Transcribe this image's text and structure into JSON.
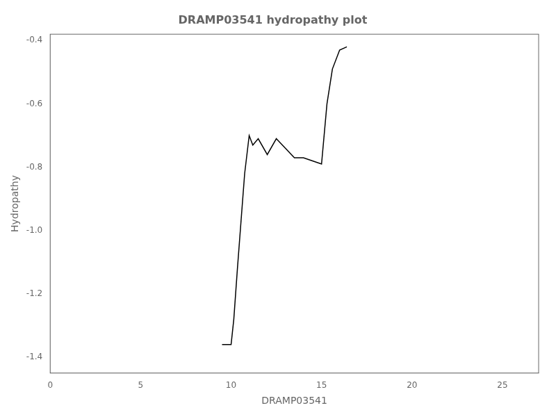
{
  "chart_data": {
    "type": "line",
    "title": "DRAMP03541 hydropathy plot",
    "xlabel": "DRAMP03541",
    "ylabel": "Hydropathy",
    "x": [
      9.5,
      10.0,
      10.15,
      10.35,
      10.55,
      10.75,
      11.0,
      11.2,
      11.5,
      12.0,
      12.5,
      13.0,
      13.5,
      14.0,
      14.5,
      15.0,
      15.3,
      15.6,
      16.0,
      16.4
    ],
    "values": [
      -1.36,
      -1.36,
      -1.28,
      -1.12,
      -0.97,
      -0.82,
      -0.7,
      -0.73,
      -0.71,
      -0.76,
      -0.71,
      -0.74,
      -0.77,
      -0.77,
      -0.78,
      -0.79,
      -0.6,
      -0.49,
      -0.43,
      -0.42
    ],
    "color": "#000000",
    "xlim": [
      0,
      27
    ],
    "xticks": [
      0,
      5,
      10,
      15,
      20,
      25
    ],
    "ylim": [
      -1.45,
      -0.38
    ],
    "yticks": [
      -1.4,
      -1.2,
      {
        "value": -1.0,
        "label": "-1.0"
      },
      -0.8,
      -0.6,
      -0.4
    ],
    "grid": false
  }
}
